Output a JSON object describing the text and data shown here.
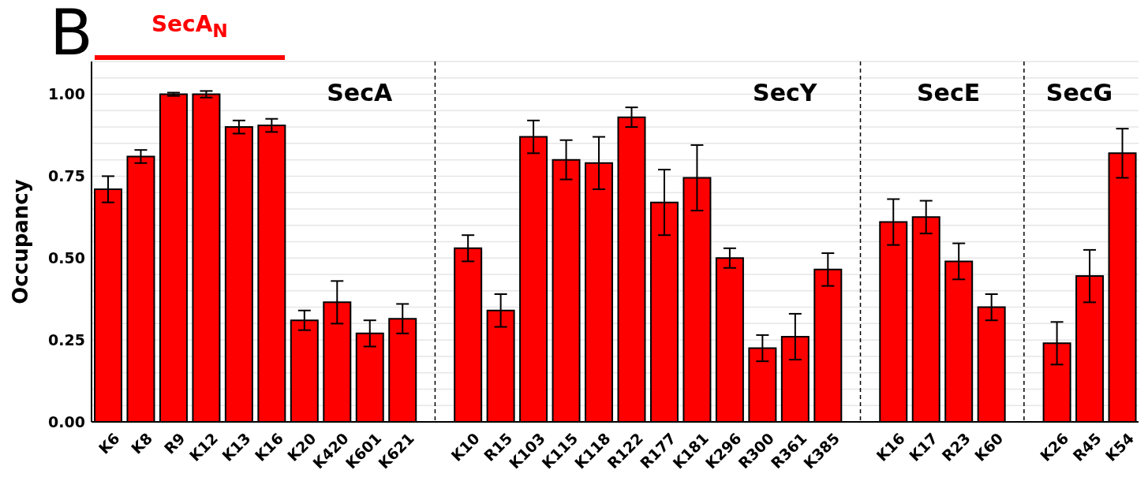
{
  "chart_data": {
    "type": "bar",
    "ylabel": "Occupancy",
    "categories": [
      "K6",
      "K8",
      "R9",
      "K12",
      "K13",
      "K16",
      "K20",
      "K420",
      "K601",
      "K621",
      null,
      "K10",
      "R15",
      "K103",
      "K115",
      "K118",
      "R122",
      "R177",
      "K181",
      "K296",
      "R300",
      "R361",
      "K385",
      null,
      "K16",
      "K17",
      "R23",
      "K60",
      null,
      "K26",
      "R45",
      "K54"
    ],
    "values": [
      0.71,
      0.81,
      1.0,
      1.0,
      0.9,
      0.905,
      0.31,
      0.365,
      0.27,
      0.315,
      null,
      0.53,
      0.34,
      0.87,
      0.8,
      0.79,
      0.93,
      0.67,
      0.745,
      0.5,
      0.225,
      0.26,
      0.465,
      null,
      0.61,
      0.625,
      0.49,
      0.35,
      null,
      0.24,
      0.445,
      0.82
    ],
    "errors": [
      0.04,
      0.02,
      0.005,
      0.01,
      0.02,
      0.02,
      0.03,
      0.065,
      0.04,
      0.045,
      null,
      0.04,
      0.05,
      0.05,
      0.06,
      0.08,
      0.03,
      0.1,
      0.1,
      0.03,
      0.04,
      0.07,
      0.05,
      null,
      0.07,
      0.05,
      0.055,
      0.04,
      null,
      0.065,
      0.08,
      0.075
    ],
    "color": "#ff0000",
    "ylim": [
      0,
      1.1
    ],
    "yticks": [
      {
        "value": 0,
        "label": "0.00"
      },
      {
        "value": 0.05,
        "label": null
      },
      {
        "value": 0.1,
        "label": null
      },
      {
        "value": 0.15,
        "label": null
      },
      {
        "value": 0.2,
        "label": null
      },
      {
        "value": 0.25,
        "label": "0.25"
      },
      {
        "value": 0.3,
        "label": null
      },
      {
        "value": 0.35,
        "label": null
      },
      {
        "value": 0.4,
        "label": null
      },
      {
        "value": 0.45,
        "label": null
      },
      {
        "value": 0.5,
        "label": "0.50"
      },
      {
        "value": 0.55,
        "label": null
      },
      {
        "value": 0.6,
        "label": null
      },
      {
        "value": 0.65,
        "label": null
      },
      {
        "value": 0.7,
        "label": null
      },
      {
        "value": 0.75,
        "label": "0.75"
      },
      {
        "value": 0.8,
        "label": null
      },
      {
        "value": 0.85,
        "label": null
      },
      {
        "value": 0.9,
        "label": null
      },
      {
        "value": 0.95,
        "label": null
      },
      {
        "value": 1.0,
        "label": "1.00"
      },
      {
        "value": 1.05,
        "label": null
      }
    ],
    "grid": "y",
    "ref_lines": [
      {
        "axis": "x",
        "line_style": "dashed",
        "color": "#000000"
      },
      {
        "axis": "x",
        "line_style": "dashed",
        "color": "#000000"
      },
      {
        "axis": "x",
        "line_style": "dashed",
        "color": "#000000"
      }
    ],
    "annotations": [
      "B",
      "SecA$_{N}$",
      "SecA",
      "SecY",
      "SecE",
      "SecG"
    ]
  }
}
